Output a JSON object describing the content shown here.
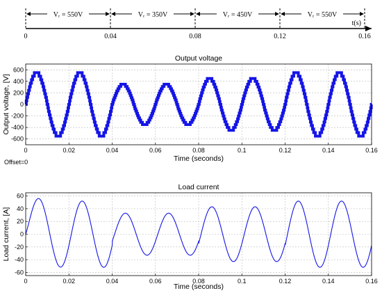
{
  "timeline": {
    "axis_label": "t(s)",
    "ticks": [
      "0",
      "0.04",
      "0.08",
      "0.12",
      "0.16"
    ],
    "ticks_value": [
      0,
      0.04,
      0.08,
      0.12,
      0.16
    ],
    "intervals": [
      {
        "label": "Vᵣ = 550V",
        "start": 0,
        "end": 0.04
      },
      {
        "label": "Vᵣ = 350V",
        "start": 0.04,
        "end": 0.08
      },
      {
        "label": "Vᵣ = 450V",
        "start": 0.08,
        "end": 0.12
      },
      {
        "label": "Vᵣ = 550V",
        "start": 0.12,
        "end": 0.16
      }
    ]
  },
  "offset_text": "Offset=0",
  "colors": {
    "series": "#1414e6",
    "grid": "#b8b8b8",
    "axis": "#000000"
  },
  "chart_data": [
    {
      "type": "line",
      "title": "Output voltage",
      "xlabel": "Time (seconds)",
      "ylabel": "Output voltage, [V]",
      "xlim": [
        0,
        0.16
      ],
      "ylim": [
        -700,
        700
      ],
      "xticks": [
        0,
        0.02,
        0.04,
        0.06,
        0.08,
        0.1,
        0.12,
        0.14,
        0.16
      ],
      "xtick_labels": [
        "0",
        "0.02",
        "0.04",
        "0.06",
        "0.08",
        "0.1",
        "0.12",
        "0.14",
        "0.16"
      ],
      "yticks": [
        600,
        400,
        200,
        0,
        -200,
        -400,
        -600
      ],
      "ytick_labels": [
        "600",
        "400",
        "200",
        "0",
        "-200",
        "-400",
        "-600"
      ],
      "grid": true,
      "style": "multilevel staircase",
      "series": [
        {
          "frequency_hz": 50,
          "segments": [
            {
              "t_start": 0,
              "t_end": 0.04,
              "amplitude": 550
            },
            {
              "t_start": 0.04,
              "t_end": 0.08,
              "amplitude": 350
            },
            {
              "t_start": 0.08,
              "t_end": 0.12,
              "amplitude": 450
            },
            {
              "t_start": 0.12,
              "t_end": 0.16,
              "amplitude": 550
            }
          ]
        }
      ]
    },
    {
      "type": "line",
      "title": "Load current",
      "xlabel": "Time (seconds)",
      "ylabel": "Load current, [A]",
      "xlim": [
        0,
        0.16
      ],
      "ylim": [
        -65,
        65
      ],
      "xticks": [
        0,
        0.02,
        0.04,
        0.06,
        0.08,
        0.1,
        0.12,
        0.14,
        0.16
      ],
      "xtick_labels": [
        "0",
        "0.02",
        "0.04",
        "0.06",
        "0.08",
        "0.1",
        "0.12",
        "0.14",
        "0.16"
      ],
      "yticks": [
        60,
        40,
        20,
        0,
        -20,
        -40,
        -60
      ],
      "ytick_labels": [
        "60",
        "40",
        "20",
        "0",
        "-20",
        "-40",
        "-60"
      ],
      "grid": true,
      "series": [
        {
          "frequency_hz": 50,
          "phase_lag_rad": 0.35,
          "segments": [
            {
              "t_start": 0,
              "t_end": 0.04,
              "amplitude": 52
            },
            {
              "t_start": 0.04,
              "t_end": 0.08,
              "amplitude": 33
            },
            {
              "t_start": 0.08,
              "t_end": 0.12,
              "amplitude": 43
            },
            {
              "t_start": 0.12,
              "t_end": 0.16,
              "amplitude": 52
            }
          ]
        }
      ]
    }
  ]
}
